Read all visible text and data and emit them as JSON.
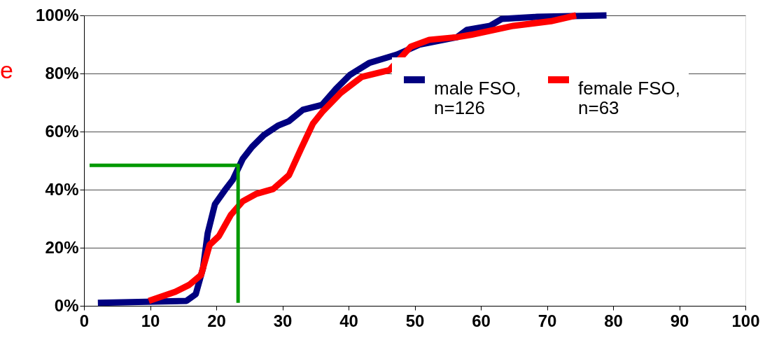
{
  "chart_data": {
    "type": "line",
    "annotations": [
      "e"
    ],
    "xlim": [
      0,
      100
    ],
    "xticks": [
      0,
      10,
      20,
      30,
      40,
      50,
      60,
      70,
      80,
      90,
      100
    ],
    "ylim": [
      0,
      100
    ],
    "yticks": [
      {
        "value": 0,
        "label": "0%"
      },
      {
        "value": 20,
        "label": "20%"
      },
      {
        "value": 40,
        "label": "40%"
      },
      {
        "value": 60,
        "label": "60%"
      },
      {
        "value": 80,
        "label": "80%"
      },
      {
        "value": 100,
        "label": "100%"
      }
    ],
    "grid": "y",
    "legend": "right",
    "series": [
      {
        "name": "male FSO,\nn=126",
        "color": "#000080",
        "x": [
          2.1,
          15.5,
          16.9,
          18,
          18.7,
          19.8,
          21.2,
          22.5,
          24,
          25.4,
          27.2,
          29.3,
          31,
          33.1,
          36,
          38.1,
          40.2,
          43.1,
          47.3,
          50.8,
          56.4,
          57.9,
          61.4,
          63.2,
          68.5,
          79
        ],
        "values": [
          1,
          1.7,
          4,
          13,
          25,
          35,
          39.5,
          43.4,
          50.6,
          54.7,
          58.8,
          62,
          63.6,
          67.5,
          69.2,
          74.7,
          79.5,
          83.6,
          86.5,
          90,
          92.5,
          95,
          96.4,
          98.8,
          99.5,
          100
        ]
      },
      {
        "name": "female FSO,\nn=63",
        "color": "#ff0000",
        "x": [
          9.8,
          13.8,
          15.9,
          17.7,
          19,
          20.4,
          22.2,
          24,
          26.1,
          28.6,
          31,
          32.8,
          34.6,
          36,
          38.8,
          42,
          46.2,
          49.4,
          52.2,
          56.4,
          58.5,
          64.9,
          70.6,
          74.4
        ],
        "values": [
          1.7,
          4.8,
          7.2,
          10.6,
          21,
          24,
          31.3,
          36,
          38.6,
          40.2,
          45,
          54,
          62.7,
          66.7,
          73.3,
          78.8,
          81.2,
          89.2,
          91.6,
          92.5,
          93.3,
          96.4,
          98,
          100
        ]
      },
      {
        "color": "#009900",
        "x": [
          0.85,
          23.3,
          23.3
        ],
        "values": [
          48.4,
          48.4,
          1
        ]
      }
    ]
  }
}
